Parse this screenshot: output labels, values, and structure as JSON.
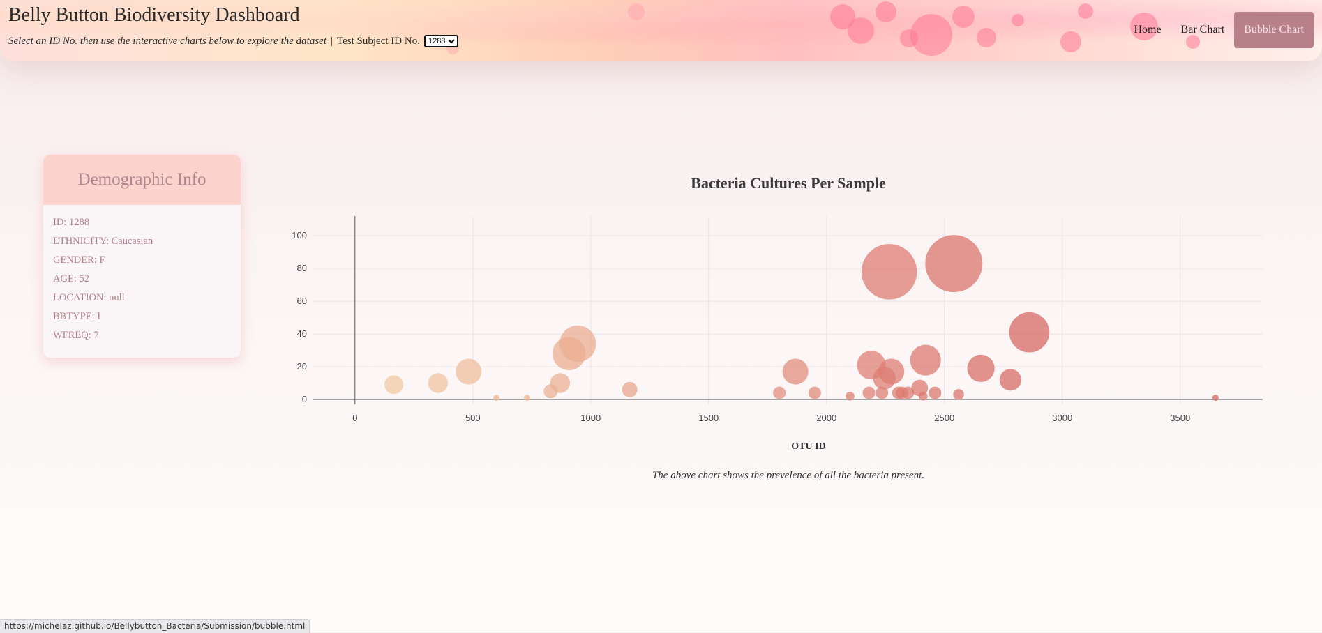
{
  "header": {
    "title": "Belly Button Biodiversity Dashboard",
    "subtitle": "Select an ID No. then use the interactive charts below to explore the dataset",
    "separator": "|",
    "select_label": "Test Subject ID No.",
    "selected_id": "1288"
  },
  "nav": {
    "home": "Home",
    "bar_chart": "Bar Chart",
    "bubble_chart": "Bubble Chart"
  },
  "demographics": {
    "title": "Demographic Info",
    "lines": [
      "ID: 1288",
      "ETHNICITY: Caucasian",
      "GENDER: F",
      "AGE: 52",
      "LOCATION: null",
      "BBTYPE: I",
      "WFREQ: 7"
    ]
  },
  "caption": "The above chart shows the prevelence of  all the bacteria present.",
  "status_url": "https://michelaz.github.io/Bellybutton_Bacteria/Submission/bubble.html",
  "colors": {
    "accent": "#b8818a",
    "card_header": "#fdd3cd",
    "card_text": "#b57f8c"
  },
  "chart_data": {
    "type": "scatter",
    "title": "Bacteria Cultures Per Sample",
    "xlabel": "OTU ID",
    "ylabel": "",
    "xlim": [
      -180,
      3850
    ],
    "ylim": [
      -3,
      112
    ],
    "x_ticks": [
      0,
      500,
      1000,
      1500,
      2000,
      2500,
      3000,
      3500
    ],
    "y_ticks": [
      0,
      20,
      40,
      60,
      80,
      100
    ],
    "points": [
      {
        "x": 165,
        "y": 9
      },
      {
        "x": 352,
        "y": 10
      },
      {
        "x": 482,
        "y": 17
      },
      {
        "x": 600,
        "y": 1
      },
      {
        "x": 730,
        "y": 1
      },
      {
        "x": 830,
        "y": 5
      },
      {
        "x": 870,
        "y": 10
      },
      {
        "x": 908,
        "y": 28
      },
      {
        "x": 945,
        "y": 34
      },
      {
        "x": 1165,
        "y": 6
      },
      {
        "x": 1800,
        "y": 4
      },
      {
        "x": 1868,
        "y": 17
      },
      {
        "x": 1950,
        "y": 4
      },
      {
        "x": 2100,
        "y": 2
      },
      {
        "x": 2180,
        "y": 4
      },
      {
        "x": 2190,
        "y": 21
      },
      {
        "x": 2235,
        "y": 4
      },
      {
        "x": 2245,
        "y": 13
      },
      {
        "x": 2266,
        "y": 78
      },
      {
        "x": 2275,
        "y": 17
      },
      {
        "x": 2305,
        "y": 4
      },
      {
        "x": 2320,
        "y": 4
      },
      {
        "x": 2345,
        "y": 4
      },
      {
        "x": 2395,
        "y": 7
      },
      {
        "x": 2410,
        "y": 2
      },
      {
        "x": 2420,
        "y": 24
      },
      {
        "x": 2460,
        "y": 4
      },
      {
        "x": 2540,
        "y": 83
      },
      {
        "x": 2560,
        "y": 3
      },
      {
        "x": 2655,
        "y": 19
      },
      {
        "x": 2780,
        "y": 12
      },
      {
        "x": 2860,
        "y": 41
      },
      {
        "x": 3650,
        "y": 1
      }
    ]
  }
}
